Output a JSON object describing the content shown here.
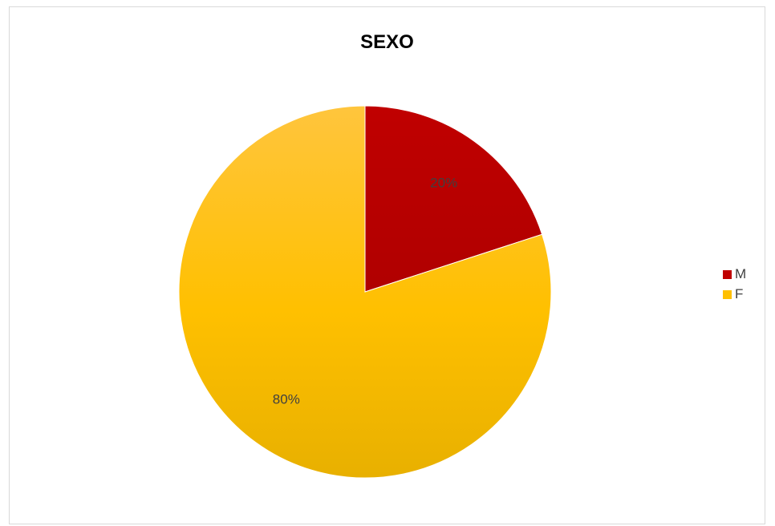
{
  "chart_data": {
    "type": "pie",
    "title": "SEXO",
    "categories": [
      "M",
      "F"
    ],
    "values": [
      20,
      80
    ],
    "data_labels": [
      "20%",
      "80%"
    ],
    "colors": [
      "#C00000",
      "#FFC000"
    ],
    "legend_position": "right"
  }
}
